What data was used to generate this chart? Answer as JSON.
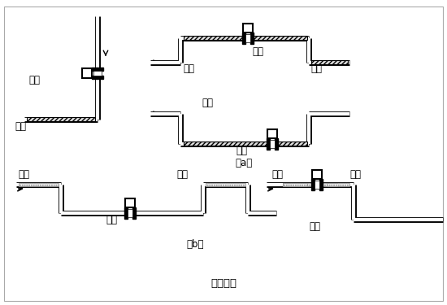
{
  "title": "图（四）",
  "label_a": "（a）",
  "label_b": "（b）",
  "bg_color": "#ffffff",
  "line_color": "#000000",
  "text_color": "#000000",
  "font_size": 8.5,
  "labels": {
    "zhengque": "正确",
    "cuowu": "错误",
    "yeti": "液体",
    "qipao": "气泡"
  }
}
